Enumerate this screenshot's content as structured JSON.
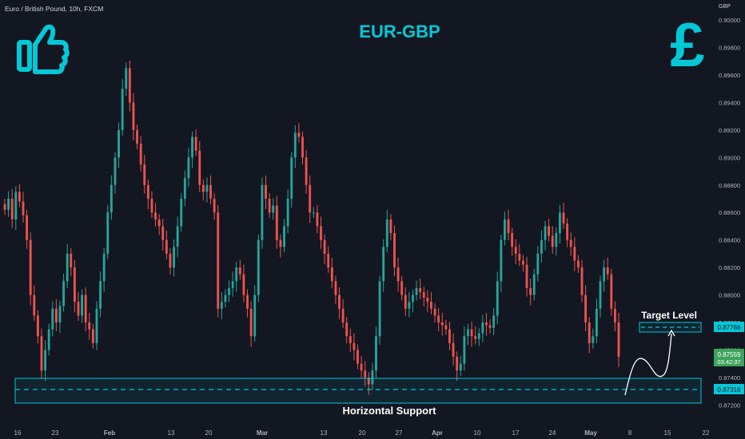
{
  "symbol_header": "Euro / British Pound, 10h, FXCM",
  "currency": "GBP",
  "chart_data": {
    "type": "candlestick",
    "title": "EUR-GBP",
    "price_ticks": [
      "0.90000",
      "0.89800",
      "0.89600",
      "0.89400",
      "0.89200",
      "0.89000",
      "0.88800",
      "0.88600",
      "0.88400",
      "0.88200",
      "0.88000",
      "0.87800",
      "0.87600",
      "0.87400",
      "0.87200"
    ],
    "time_ticks": [
      "16",
      "23",
      "Feb",
      "13",
      "20",
      "Mar",
      "13",
      "20",
      "27",
      "Apr",
      "10",
      "17",
      "24",
      "May",
      "8",
      "15",
      "22"
    ],
    "ylim": [
      0.8716,
      0.9006
    ],
    "grid": false,
    "candles_per_year_part": "approx 10h bars, mid-January to early May",
    "closes": [
      0.8862,
      0.887,
      0.8855,
      0.8875,
      0.8868,
      0.8858,
      0.884,
      0.88,
      0.8785,
      0.877,
      0.8745,
      0.876,
      0.8775,
      0.879,
      0.878,
      0.8792,
      0.881,
      0.883,
      0.882,
      0.8795,
      0.8785,
      0.88,
      0.878,
      0.8775,
      0.8765,
      0.879,
      0.881,
      0.883,
      0.886,
      0.888,
      0.89,
      0.892,
      0.895,
      0.8965,
      0.894,
      0.892,
      0.891,
      0.8895,
      0.888,
      0.887,
      0.886,
      0.8855,
      0.885,
      0.884,
      0.883,
      0.882,
      0.8835,
      0.885,
      0.887,
      0.8885,
      0.89,
      0.8915,
      0.8905,
      0.888,
      0.8875,
      0.888,
      0.887,
      0.886,
      0.879,
      0.8795,
      0.88,
      0.8805,
      0.881,
      0.882,
      0.8815,
      0.88,
      0.879,
      0.877,
      0.88,
      0.884,
      0.888,
      0.887,
      0.886,
      0.8865,
      0.884,
      0.8835,
      0.885,
      0.887,
      0.89,
      0.8918,
      0.8915,
      0.89,
      0.888,
      0.886,
      0.886,
      0.885,
      0.884,
      0.883,
      0.882,
      0.881,
      0.88,
      0.879,
      0.878,
      0.877,
      0.8765,
      0.876,
      0.875,
      0.8745,
      0.874,
      0.8735,
      0.8745,
      0.877,
      0.881,
      0.8835,
      0.8855,
      0.8845,
      0.882,
      0.881,
      0.88,
      0.879,
      0.8795,
      0.88,
      0.8805,
      0.8802,
      0.8798,
      0.8795,
      0.879,
      0.8785,
      0.878,
      0.8778,
      0.8775,
      0.8765,
      0.8755,
      0.8745,
      0.875,
      0.877,
      0.8775,
      0.877,
      0.8768,
      0.8772,
      0.878,
      0.8778,
      0.8776,
      0.8785,
      0.881,
      0.884,
      0.8855,
      0.8845,
      0.8835,
      0.883,
      0.8825,
      0.8822,
      0.8805,
      0.88,
      0.8815,
      0.883,
      0.884,
      0.885,
      0.8843,
      0.8835,
      0.8845,
      0.886,
      0.8852,
      0.884,
      0.8835,
      0.8825,
      0.882,
      0.88,
      0.878,
      0.8765,
      0.877,
      0.879,
      0.881,
      0.882,
      0.8815,
      0.879,
      0.878,
      0.8755
    ],
    "annotations": {
      "target_label": "Target Level",
      "target_price": "0.87766",
      "support_label": "Horizontal Support",
      "support_price": "0.87316",
      "last_price": "0.87559",
      "countdown": "03:42:37"
    },
    "target_value": 0.87766,
    "support_value": 0.87316,
    "support_zone": [
      0.8724,
      0.8738
    ],
    "last_value": 0.87559
  },
  "icons": {
    "thumbs_up": "thumbs-up-icon",
    "pound": "pound-sterling-icon"
  },
  "colors": {
    "background": "#131722",
    "up": "#26a69a",
    "down": "#ef5350",
    "accent": "#00c8d7",
    "target_box": "#06c2d4",
    "last_badge": "#3fa35b"
  },
  "pound_glyph": "£"
}
